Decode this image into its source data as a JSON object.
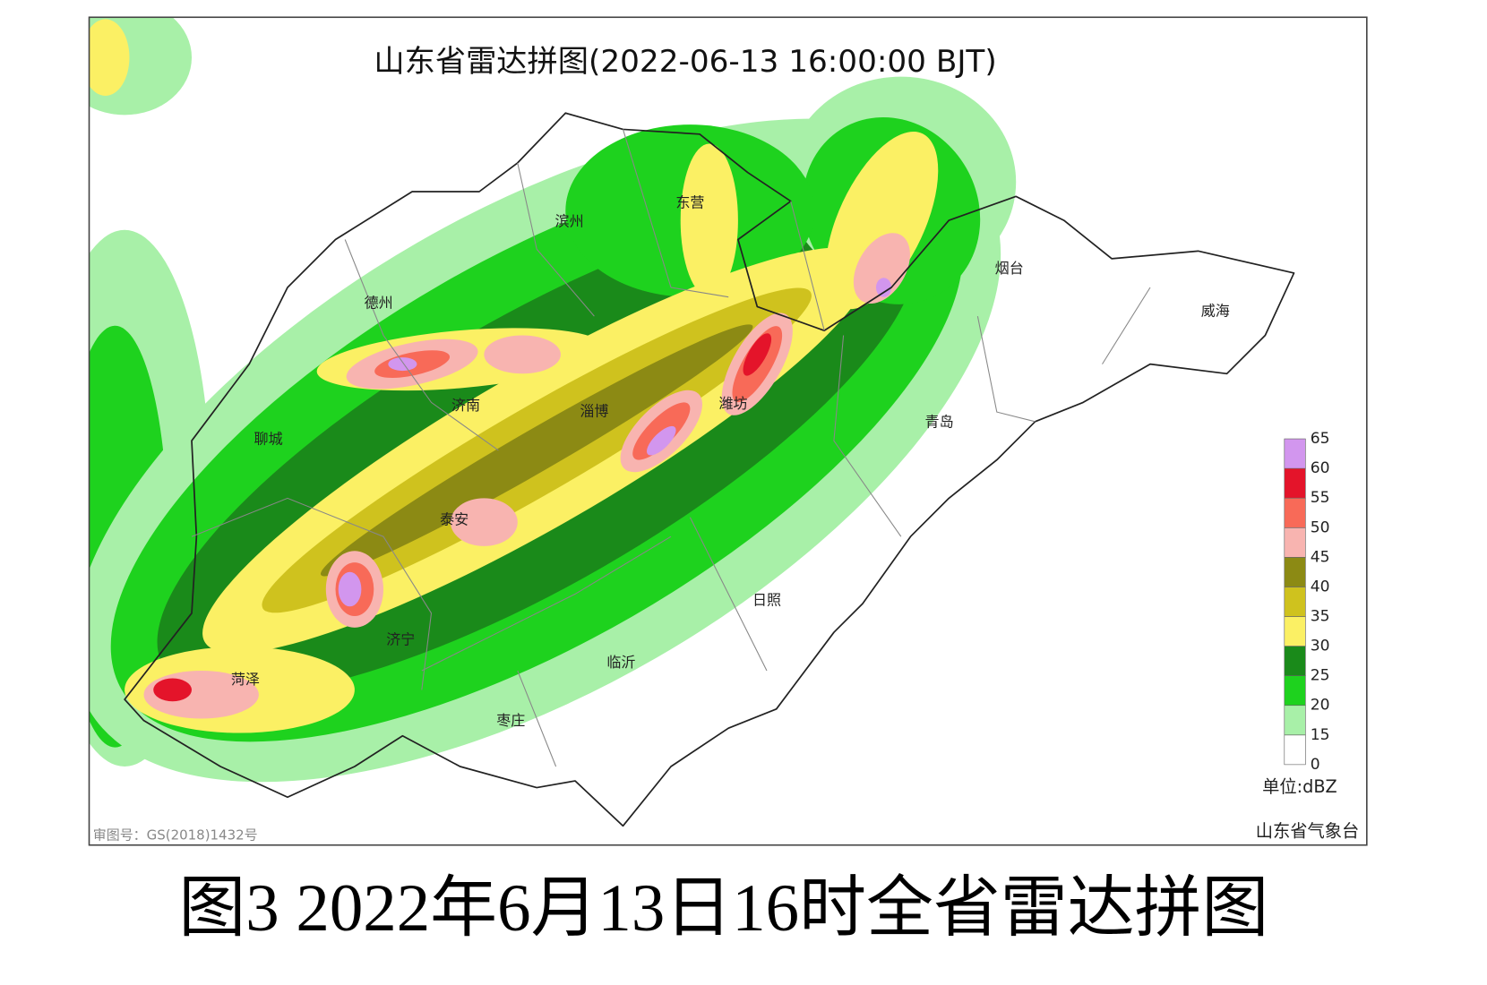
{
  "map": {
    "title": "山东省雷达拼图(2022-06-13 16:00:00 BJT)",
    "cities": [
      "滨州",
      "东营",
      "烟台",
      "威海",
      "德州",
      "济南",
      "淄博",
      "潍坊",
      "青岛",
      "聊城",
      "泰安",
      "日照",
      "济宁",
      "临沂",
      "菏泽",
      "枣庄"
    ],
    "legend": {
      "ticks": [
        0,
        15,
        20,
        25,
        30,
        35,
        40,
        45,
        50,
        55,
        60,
        65
      ],
      "colors": [
        "#ffffff",
        "#a8f0a8",
        "#1ed21e",
        "#1a8a1a",
        "#fbf064",
        "#cfc21e",
        "#8c8a14",
        "#f8b4b0",
        "#f86a58",
        "#e4142a",
        "#d296ee"
      ],
      "unit": "单位:dBZ"
    },
    "credit": "山东省气象台",
    "approval": "审图号：GS(2018)1432号"
  },
  "caption": "图3 2022年6月13日16时全省雷达拼图"
}
